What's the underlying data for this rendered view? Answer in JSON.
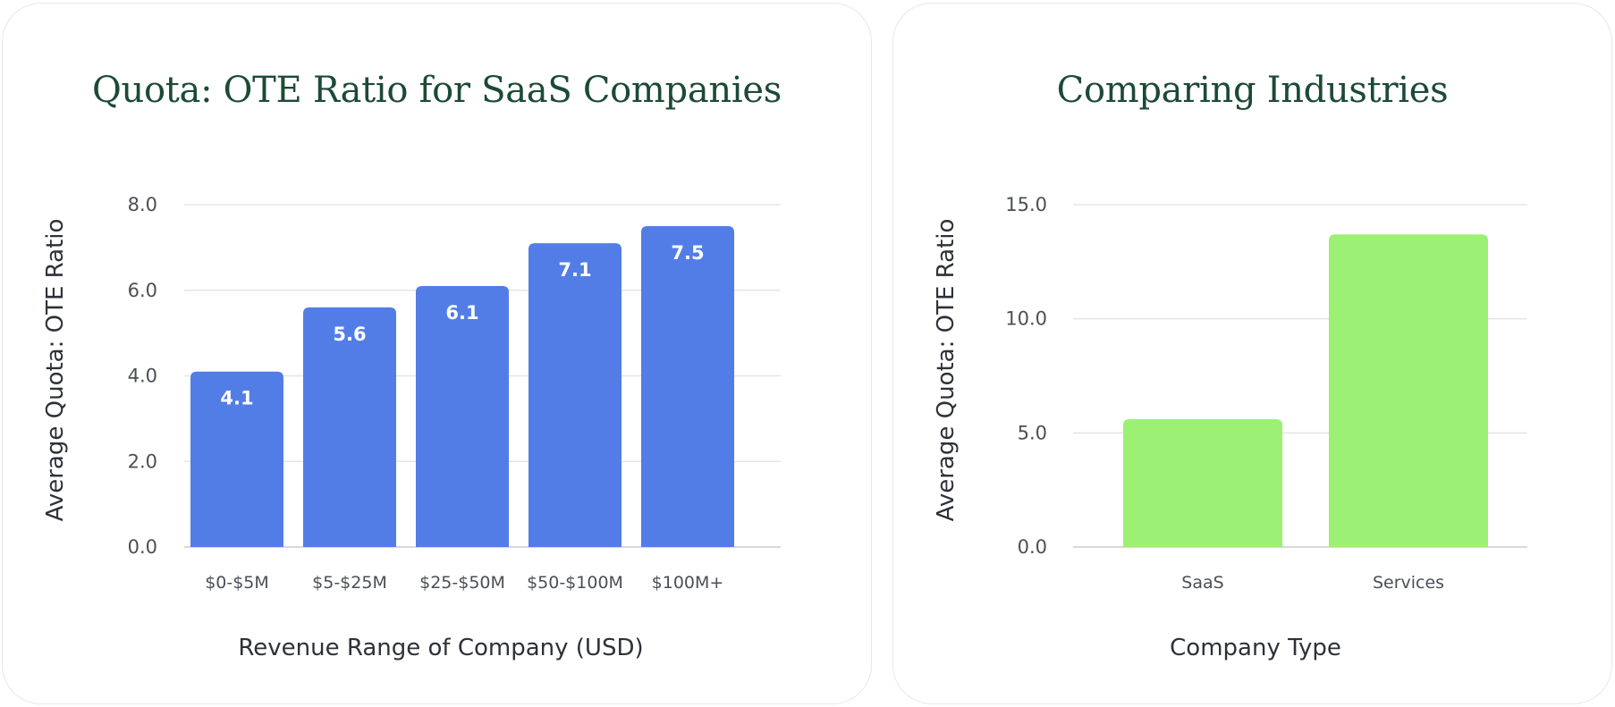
{
  "chart_data": [
    {
      "type": "bar",
      "title": "Quota: OTE Ratio for SaaS Companies",
      "xlabel": "Revenue Range of Company (USD)",
      "ylabel": "Average Quota: OTE Ratio",
      "categories": [
        "$0-$5M",
        "$5-$25M",
        "$25-$50M",
        "$50-$100M",
        "$100M+"
      ],
      "values": [
        4.1,
        5.6,
        6.1,
        7.1,
        7.5
      ],
      "value_labels": [
        "4.1",
        "5.6",
        "6.1",
        "7.1",
        "7.5"
      ],
      "ylim": [
        0,
        8
      ],
      "yticks": [
        0,
        2,
        4,
        6,
        8
      ],
      "ytick_labels": [
        "0.0",
        "2.0",
        "4.0",
        "6.0",
        "8.0"
      ],
      "grid": true,
      "bar_color": "#537de6",
      "show_value_labels": true
    },
    {
      "type": "bar",
      "title": "Comparing Industries",
      "xlabel": "Company Type",
      "ylabel": "Average Quota: OTE Ratio",
      "categories": [
        "SaaS",
        "Services"
      ],
      "values": [
        5.6,
        13.7
      ],
      "value_labels": [],
      "ylim": [
        0,
        15
      ],
      "yticks": [
        0,
        5,
        10,
        15
      ],
      "ytick_labels": [
        "0.0",
        "5.0",
        "10.0",
        "15.0"
      ],
      "grid": true,
      "bar_color": "#9cf074",
      "show_value_labels": false
    }
  ]
}
